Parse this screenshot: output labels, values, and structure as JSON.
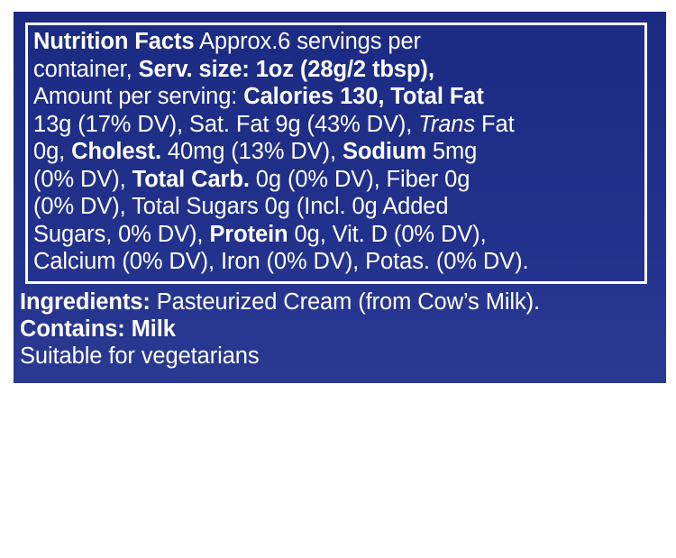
{
  "nutrition_facts": {
    "lines": [
      [
        {
          "text": "Nutrition Facts",
          "style": "bold"
        },
        {
          "text": " Approx.6 servings per",
          "style": "normal"
        }
      ],
      [
        {
          "text": "container, ",
          "style": "normal"
        },
        {
          "text": "Serv. size: 1oz (28g/2 tbsp),",
          "style": "bold"
        }
      ],
      [
        {
          "text": "Amount per serving: ",
          "style": "normal"
        },
        {
          "text": "Calories 130, Total Fat",
          "style": "bold"
        }
      ],
      [
        {
          "text": "13g (17% DV), Sat. Fat 9g (43% DV), ",
          "style": "normal"
        },
        {
          "text": "Trans",
          "style": "italic"
        },
        {
          "text": " Fat",
          "style": "normal"
        }
      ],
      [
        {
          "text": "0g, ",
          "style": "normal"
        },
        {
          "text": "Cholest.",
          "style": "bold"
        },
        {
          "text": " 40mg (13% DV), ",
          "style": "normal"
        },
        {
          "text": "Sodium",
          "style": "bold"
        },
        {
          "text": " 5mg",
          "style": "normal"
        }
      ],
      [
        {
          "text": "(0% DV), ",
          "style": "normal"
        },
        {
          "text": "Total Carb.",
          "style": "bold"
        },
        {
          "text": " 0g (0% DV), Fiber 0g",
          "style": "normal"
        }
      ],
      [
        {
          "text": "(0% DV), Total Sugars 0g (Incl. 0g Added",
          "style": "normal"
        }
      ],
      [
        {
          "text": "Sugars, 0% DV), ",
          "style": "normal"
        },
        {
          "text": "Protein",
          "style": "bold"
        },
        {
          "text": " 0g, Vit. D (0% DV),",
          "style": "normal"
        }
      ],
      [
        {
          "text": "Calcium (0% DV), Iron (0% DV), Potas. (0% DV).",
          "style": "normal"
        }
      ]
    ]
  },
  "ingredients": {
    "heading": "Ingredients:",
    "text": " Pasteurized Cream (from Cow’s Milk).",
    "contains_heading": "Contains: Milk",
    "note": "Suitable for vegetarians"
  },
  "colors": {
    "panel_background": "#1d2d86",
    "text": "#ffffff",
    "page_background": "#ffffff"
  }
}
